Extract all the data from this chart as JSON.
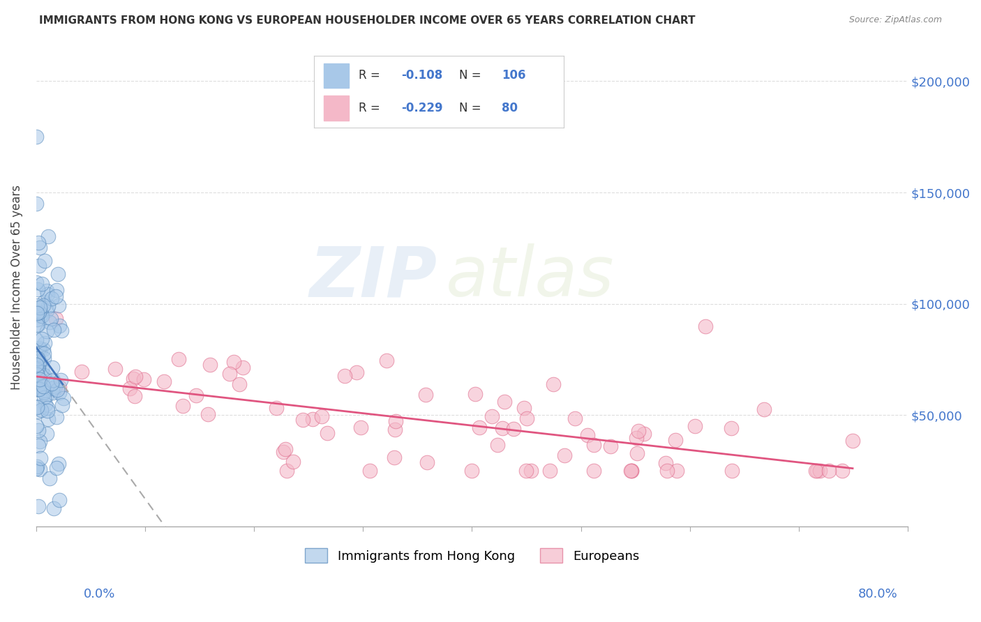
{
  "title": "IMMIGRANTS FROM HONG KONG VS EUROPEAN HOUSEHOLDER INCOME OVER 65 YEARS CORRELATION CHART",
  "source": "Source: ZipAtlas.com",
  "ylabel": "Householder Income Over 65 years",
  "watermark_zip": "ZIP",
  "watermark_atlas": "atlas",
  "blue_R": -0.108,
  "blue_N": 106,
  "pink_R": -0.229,
  "pink_N": 80,
  "blue_color": "#a8c8e8",
  "pink_color": "#f4b8c8",
  "blue_edge_color": "#5588bb",
  "pink_edge_color": "#e07090",
  "blue_line_color": "#4477bb",
  "pink_line_color": "#e05580",
  "dashed_line_color": "#aaaaaa",
  "yticks": [
    50000,
    100000,
    150000,
    200000
  ],
  "ytick_labels": [
    "$50,000",
    "$100,000",
    "$150,000",
    "$200,000"
  ],
  "xlim": [
    0.0,
    0.8
  ],
  "ylim": [
    0,
    215000
  ],
  "legend_blue_color": "#a8c8e8",
  "legend_pink_color": "#f4b8c8",
  "r_color": "#4477cc",
  "n_color": "#4477cc"
}
